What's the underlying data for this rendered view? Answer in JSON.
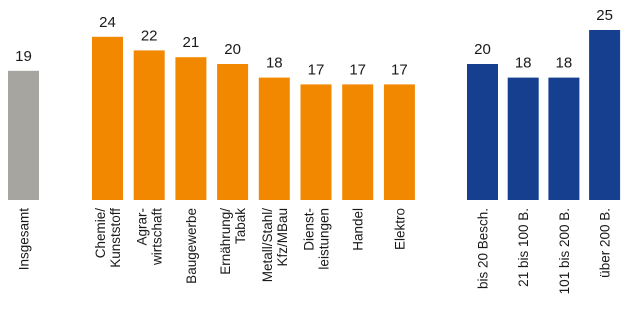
{
  "chart_data": {
    "type": "bar",
    "title": "",
    "xlabel": "",
    "ylabel": "",
    "ylim": [
      0,
      25
    ],
    "grid": false,
    "legend": "none",
    "colors": {
      "total": "#a7a5a0",
      "sector": "#f18800",
      "size": "#163f8f"
    },
    "groups": [
      {
        "color_key": "total",
        "bars": [
          {
            "label_lines": [
              "Insgesamt"
            ],
            "value": 19
          }
        ]
      },
      {
        "color_key": "sector",
        "bars": [
          {
            "label_lines": [
              "Chemie/",
              "Kunststoff"
            ],
            "value": 24
          },
          {
            "label_lines": [
              "Agrar-",
              "wirtschaft"
            ],
            "value": 22
          },
          {
            "label_lines": [
              "Baugewerbe"
            ],
            "value": 21
          },
          {
            "label_lines": [
              "Ernährung/",
              "Tabak"
            ],
            "value": 20
          },
          {
            "label_lines": [
              "Metall/Stahl/",
              "Kfz/MBau"
            ],
            "value": 18
          },
          {
            "label_lines": [
              "Dienst-",
              "leistungen"
            ],
            "value": 17
          },
          {
            "label_lines": [
              "Handel"
            ],
            "value": 17
          },
          {
            "label_lines": [
              "Elektro"
            ],
            "value": 17
          }
        ]
      },
      {
        "color_key": "size",
        "bars": [
          {
            "label_lines": [
              "bis 20 Besch."
            ],
            "value": 20
          },
          {
            "label_lines": [
              "21 bis 100 B."
            ],
            "value": 18
          },
          {
            "label_lines": [
              "101 bis 200 B."
            ],
            "value": 18
          },
          {
            "label_lines": [
              "über 200 B."
            ],
            "value": 25
          }
        ]
      }
    ]
  }
}
